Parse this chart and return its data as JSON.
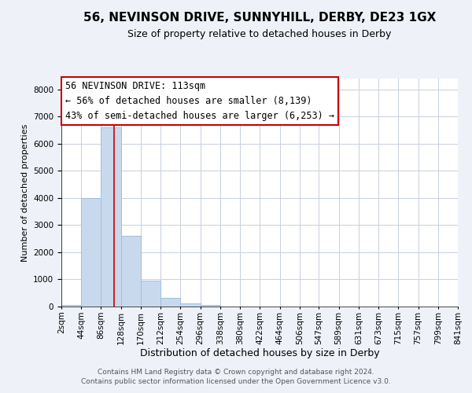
{
  "title": "56, NEVINSON DRIVE, SUNNYHILL, DERBY, DE23 1GX",
  "subtitle": "Size of property relative to detached houses in Derby",
  "xlabel": "Distribution of detached houses by size in Derby",
  "ylabel": "Number of detached properties",
  "bar_edges": [
    2,
    44,
    86,
    128,
    170,
    212,
    254,
    296,
    338,
    380,
    422,
    464,
    506,
    547,
    589,
    631,
    673,
    715,
    757,
    799,
    841
  ],
  "bar_values": [
    60,
    4000,
    6600,
    2600,
    960,
    320,
    120,
    60,
    0,
    0,
    0,
    0,
    0,
    0,
    0,
    0,
    0,
    0,
    0,
    0
  ],
  "bar_color": "#c8d9ee",
  "bar_edgecolor": "#a0bedd",
  "vline_x": 113,
  "vline_color": "#cc0000",
  "ylim": [
    0,
    8400
  ],
  "yticks": [
    0,
    1000,
    2000,
    3000,
    4000,
    5000,
    6000,
    7000,
    8000
  ],
  "tick_labels": [
    "2sqm",
    "44sqm",
    "86sqm",
    "128sqm",
    "170sqm",
    "212sqm",
    "254sqm",
    "296sqm",
    "338sqm",
    "380sqm",
    "422sqm",
    "464sqm",
    "506sqm",
    "547sqm",
    "589sqm",
    "631sqm",
    "673sqm",
    "715sqm",
    "757sqm",
    "799sqm",
    "841sqm"
  ],
  "annotation_title": "56 NEVINSON DRIVE: 113sqm",
  "annotation_line1": "← 56% of detached houses are smaller (8,139)",
  "annotation_line2": "43% of semi-detached houses are larger (6,253) →",
  "annotation_box_color": "#ffffff",
  "annotation_box_edgecolor": "#cc0000",
  "footer1": "Contains HM Land Registry data © Crown copyright and database right 2024.",
  "footer2": "Contains public sector information licensed under the Open Government Licence v3.0.",
  "background_color": "#eef2f8",
  "plot_background_color": "#ffffff",
  "grid_color": "#c8d0df",
  "title_fontsize": 11,
  "subtitle_fontsize": 9,
  "xlabel_fontsize": 9,
  "ylabel_fontsize": 8,
  "tick_fontsize": 7.5,
  "annotation_fontsize": 8.5,
  "footer_fontsize": 6.5
}
